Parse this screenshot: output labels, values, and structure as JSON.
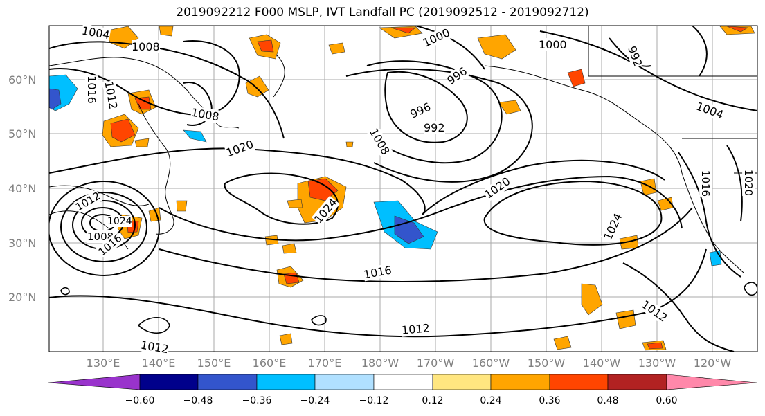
{
  "title": "2019092212 F000 MSLP, IVT Landfall PC (2019092512 - 2019092712)",
  "lat_labels": [
    "60°N",
    "50°N",
    "40°N",
    "30°N",
    "20°N"
  ],
  "lon_labels": [
    "130°E",
    "140°E",
    "150°E",
    "160°E",
    "170°E",
    "180°W",
    "170°W",
    "160°W",
    "150°W",
    "140°W",
    "130°W",
    "120°W"
  ],
  "contour_labels": [
    "1004",
    "1008",
    "1000",
    "1000",
    "996",
    "992",
    "996",
    "992",
    "1004",
    "1016",
    "1012",
    "1008",
    "1020",
    "1008",
    "1020",
    "1024",
    "1024",
    "1012",
    "1008",
    "1016",
    "1024",
    "1016",
    "1012",
    "1012",
    "1012",
    "1016",
    "1020"
  ],
  "colorbar": {
    "colors": [
      "#9933cc",
      "#00008b",
      "#3355cc",
      "#00bfff",
      "#b0e0ff",
      "#ffffff",
      "#ffe680",
      "#ffa500",
      "#ff4500",
      "#b22222",
      "#ff88aa"
    ],
    "ticks": [
      "−0.60",
      "−0.48",
      "−0.36",
      "−0.24",
      "−0.12",
      "0.12",
      "0.24",
      "0.36",
      "0.48",
      "0.60"
    ]
  }
}
